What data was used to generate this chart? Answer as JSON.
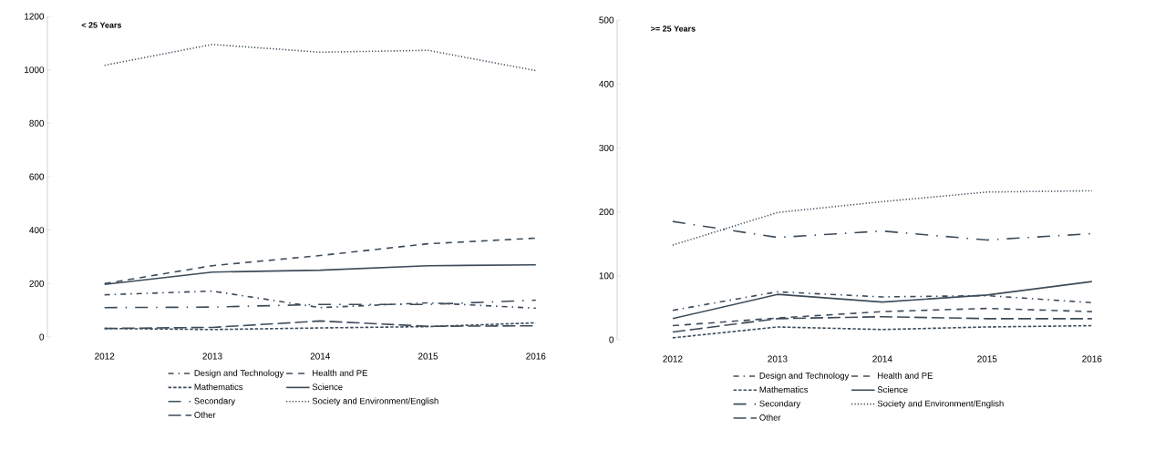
{
  "chart_data": [
    {
      "type": "line",
      "title": "< 25 Years",
      "categories": [
        "2012",
        "2013",
        "2014",
        "2015",
        "2016"
      ],
      "ylim": [
        0,
        1200
      ],
      "yticks": [
        0,
        200,
        400,
        600,
        800,
        1000,
        1200
      ],
      "legend": "bottom",
      "series": [
        {
          "name": "Design and Technology",
          "color": "#3d4c5a",
          "line_style": "dashdot",
          "values": [
            158,
            172,
            110,
            128,
            108
          ]
        },
        {
          "name": "Health and PE",
          "color": "#3d4c5a",
          "line_style": "longdash",
          "values": [
            200,
            267,
            305,
            349,
            370
          ]
        },
        {
          "name": "Mathematics",
          "color": "#3d4c5a",
          "line_style": "dashed",
          "values": [
            32,
            28,
            34,
            39,
            53
          ]
        },
        {
          "name": "Science",
          "color": "#3d4c5a",
          "line_style": "solid",
          "values": [
            197,
            243,
            250,
            267,
            270
          ]
        },
        {
          "name": "Secondary",
          "color": "#3d4c5a",
          "line_style": "longdashdot",
          "values": [
            110,
            112,
            122,
            122,
            138
          ]
        },
        {
          "name": "Society and Environment/English",
          "color": "#3d4c5a",
          "line_style": "dotted",
          "values": [
            1017,
            1095,
            1066,
            1073,
            997
          ]
        },
        {
          "name": "Other",
          "color": "#3d4c5a",
          "line_style": "longdashgap",
          "values": [
            32,
            36,
            60,
            40,
            42
          ]
        }
      ]
    },
    {
      "type": "line",
      "title": ">= 25 Years",
      "categories": [
        "2012",
        "2013",
        "2014",
        "2015",
        "2016"
      ],
      "ylim": [
        0,
        500
      ],
      "yticks": [
        0,
        100,
        200,
        300,
        400,
        500
      ],
      "legend": "bottom",
      "series": [
        {
          "name": "Design and Technology",
          "color": "#3d4c5a",
          "line_style": "dashdot",
          "values": [
            46,
            75,
            67,
            69,
            58
          ]
        },
        {
          "name": "Health and PE",
          "color": "#3d4c5a",
          "line_style": "longdash",
          "values": [
            22,
            34,
            44,
            49,
            44
          ]
        },
        {
          "name": "Mathematics",
          "color": "#3d4c5a",
          "line_style": "dashed",
          "values": [
            3,
            20,
            16,
            20,
            22
          ]
        },
        {
          "name": "Science",
          "color": "#3d4c5a",
          "line_style": "solid",
          "values": [
            33,
            71,
            59,
            70,
            91
          ]
        },
        {
          "name": "Secondary",
          "color": "#3d4c5a",
          "line_style": "longdashdot",
          "values": [
            185,
            160,
            170,
            156,
            166
          ]
        },
        {
          "name": "Society and Environment/English",
          "color": "#3d4c5a",
          "line_style": "dotted",
          "values": [
            148,
            199,
            216,
            231,
            233
          ]
        },
        {
          "name": "Other",
          "color": "#3d4c5a",
          "line_style": "longdashgap",
          "values": [
            12,
            33,
            36,
            33,
            33
          ]
        }
      ]
    }
  ]
}
